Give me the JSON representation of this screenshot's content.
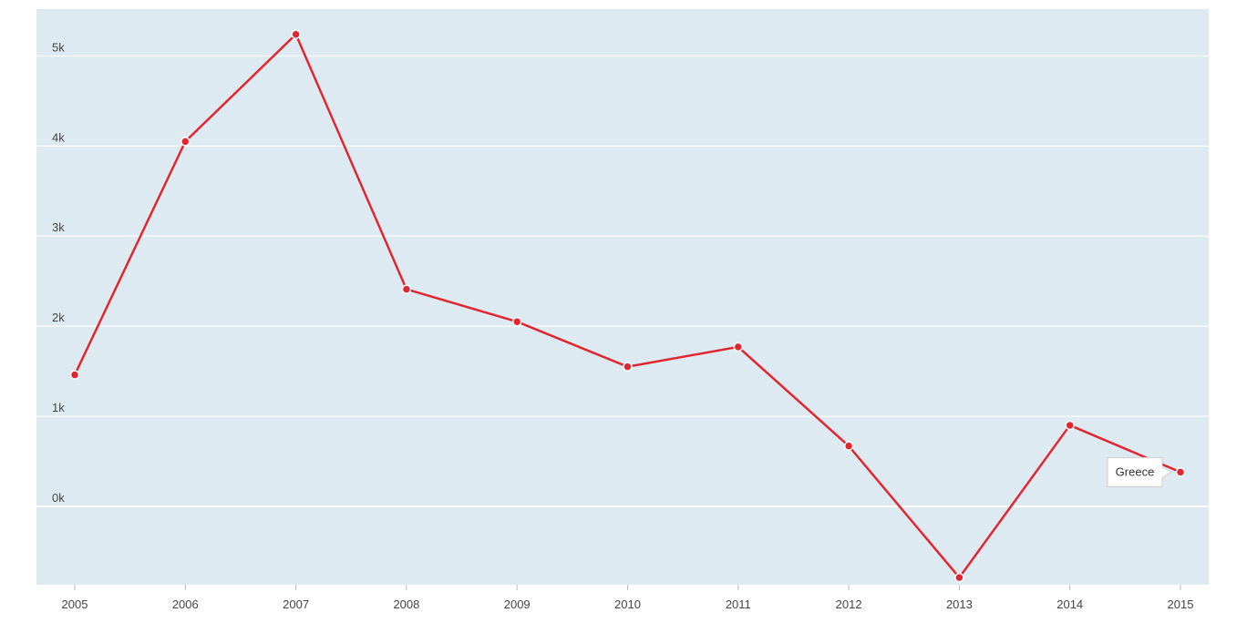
{
  "chart_data": {
    "type": "line",
    "title": "",
    "xlabel": "",
    "ylabel": "",
    "x": [
      "2005",
      "2006",
      "2007",
      "2008",
      "2009",
      "2010",
      "2011",
      "2012",
      "2013",
      "2014",
      "2015"
    ],
    "series": [
      {
        "name": "Greece",
        "values": [
          1460,
          4050,
          5240,
          2410,
          2050,
          1550,
          1770,
          670,
          -790,
          900,
          380
        ],
        "color": "#e0262f"
      }
    ],
    "yticks": [
      0,
      1000,
      2000,
      3000,
      4000,
      5000
    ],
    "ytick_labels": [
      "0k",
      "1k",
      "2k",
      "3k",
      "4k",
      "5k"
    ],
    "ylim": [
      -870,
      5520
    ],
    "grid": true,
    "plot_background": "#deeaf2",
    "grid_color": "#ffffff",
    "tooltip": {
      "text": "Greece",
      "x": "2015"
    }
  }
}
